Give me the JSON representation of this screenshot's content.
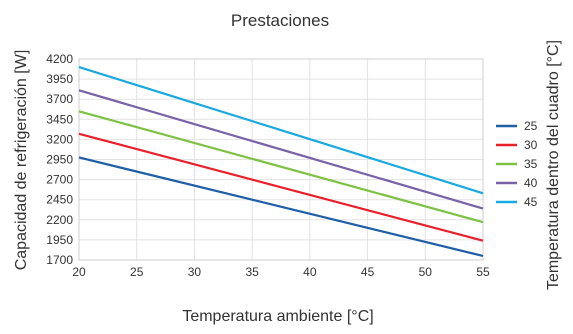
{
  "chart_data": {
    "type": "line",
    "title": "Prestaciones",
    "xlabel": "Temperatura ambiente [°C]",
    "ylabel": "Capacidad de refrigeración [W]",
    "legend_title": "Temperatura dentro del cuadro [°C]",
    "legend_position": "right",
    "grid": true,
    "xlim": [
      20,
      55
    ],
    "ylim": [
      1700,
      4200
    ],
    "x": [
      20,
      55
    ],
    "x_ticks": [
      "20",
      "25",
      "30",
      "35",
      "40",
      "45",
      "50",
      "55"
    ],
    "y_ticks": [
      "1700",
      "1950",
      "2200",
      "2450",
      "2700",
      "2950",
      "3200",
      "3450",
      "3700",
      "3950",
      "4200"
    ],
    "series": [
      {
        "name": "25",
        "color": "#1f5fa8",
        "values": [
          2975,
          1750
        ]
      },
      {
        "name": "30",
        "color": "#e8202a",
        "values": [
          3270,
          1940
        ]
      },
      {
        "name": "35",
        "color": "#7dc242",
        "values": [
          3550,
          2170
        ]
      },
      {
        "name": "40",
        "color": "#7a62a8",
        "values": [
          3810,
          2340
        ]
      },
      {
        "name": "45",
        "color": "#1aa9e0",
        "values": [
          4100,
          2530
        ]
      }
    ]
  }
}
